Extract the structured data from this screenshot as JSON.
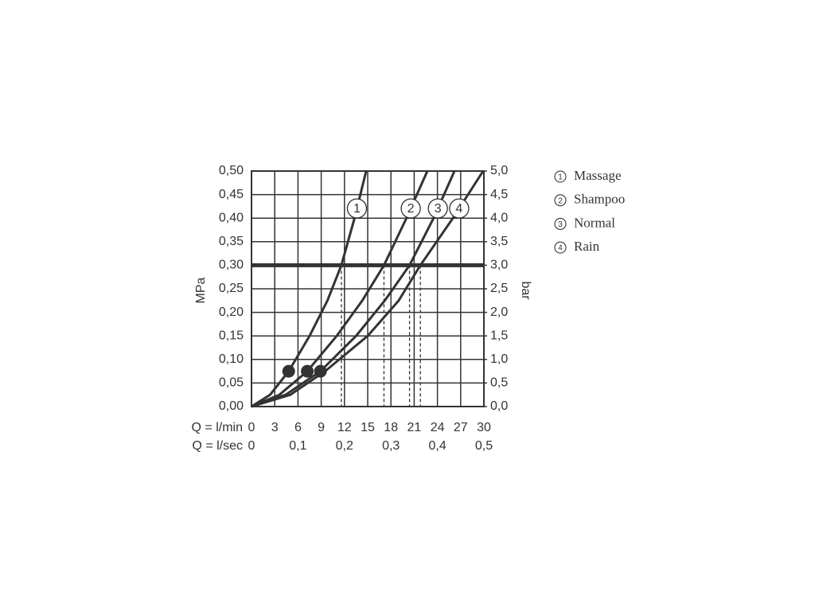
{
  "chart_data": {
    "type": "line",
    "x_label": "Q = l/min",
    "x2_label": "Q = l/sec",
    "y_label": "MPa",
    "y2_label": "bar",
    "xlim": [
      0,
      30
    ],
    "xticks": [
      0,
      3,
      6,
      9,
      12,
      15,
      18,
      21,
      24,
      27,
      30
    ],
    "x2lim": [
      0,
      0.5
    ],
    "x2ticks": [
      {
        "value": 0,
        "label": "0"
      },
      {
        "value": 0.1,
        "label": "0,1"
      },
      {
        "value": 0.2,
        "label": "0,2"
      },
      {
        "value": 0.3,
        "label": "0,3"
      },
      {
        "value": 0.4,
        "label": "0,4"
      },
      {
        "value": 0.5,
        "label": "0,5"
      }
    ],
    "ylim": [
      0,
      0.5
    ],
    "yticks": [
      {
        "value": 0,
        "label": "0,00"
      },
      {
        "value": 0.05,
        "label": "0,05"
      },
      {
        "value": 0.1,
        "label": "0,10"
      },
      {
        "value": 0.15,
        "label": "0,15"
      },
      {
        "value": 0.2,
        "label": "0,20"
      },
      {
        "value": 0.25,
        "label": "0,25"
      },
      {
        "value": 0.3,
        "label": "0,30"
      },
      {
        "value": 0.35,
        "label": "0,35"
      },
      {
        "value": 0.4,
        "label": "0,40"
      },
      {
        "value": 0.45,
        "label": "0,45"
      },
      {
        "value": 0.5,
        "label": "0,50"
      }
    ],
    "y2lim": [
      0,
      5
    ],
    "y2ticks": [
      {
        "value": 0,
        "label": "0,0"
      },
      {
        "value": 0.5,
        "label": "0,5"
      },
      {
        "value": 1,
        "label": "1,0"
      },
      {
        "value": 1.5,
        "label": "1,5"
      },
      {
        "value": 2,
        "label": "2,0"
      },
      {
        "value": 2.5,
        "label": "2,5"
      },
      {
        "value": 3,
        "label": "3,0"
      },
      {
        "value": 3.5,
        "label": "3,5"
      },
      {
        "value": 4,
        "label": "4,0"
      },
      {
        "value": 4.5,
        "label": "4,5"
      },
      {
        "value": 5,
        "label": "5,0"
      }
    ],
    "grid": true,
    "color": "#333333",
    "series": [
      {
        "name": "Massage",
        "label": "1",
        "x": [
          0,
          2.4,
          4.8,
          7.5,
          9.8,
          11.6,
          13.3,
          14.8
        ],
        "values": [
          0,
          0.025,
          0.075,
          0.15,
          0.225,
          0.3,
          0.4,
          0.5
        ]
      },
      {
        "name": "Shampoo",
        "label": "2",
        "x": [
          0,
          3.6,
          7.2,
          11,
          14.3,
          17.1,
          20,
          22.7
        ],
        "values": [
          0,
          0.025,
          0.075,
          0.15,
          0.225,
          0.3,
          0.4,
          0.5
        ]
      },
      {
        "name": "Normal",
        "label": "3",
        "x": [
          0,
          4.4,
          8.9,
          13.5,
          17.2,
          20.4,
          23.5,
          26.2
        ],
        "values": [
          0,
          0.025,
          0.075,
          0.15,
          0.225,
          0.3,
          0.4,
          0.5
        ]
      },
      {
        "name": "Rain",
        "label": "4",
        "x": [
          0,
          5,
          9.5,
          15,
          19,
          21.8,
          26,
          29.9
        ],
        "values": [
          0,
          0.025,
          0.075,
          0.15,
          0.225,
          0.3,
          0.4,
          0.5
        ]
      }
    ],
    "markers": {
      "x": [
        4.8,
        7.2,
        8.9
      ],
      "values": [
        0.075,
        0.075,
        0.075
      ]
    },
    "reference_y": 0.3,
    "reference_x": [
      11.6,
      17.1,
      20.4,
      21.8
    ]
  }
}
